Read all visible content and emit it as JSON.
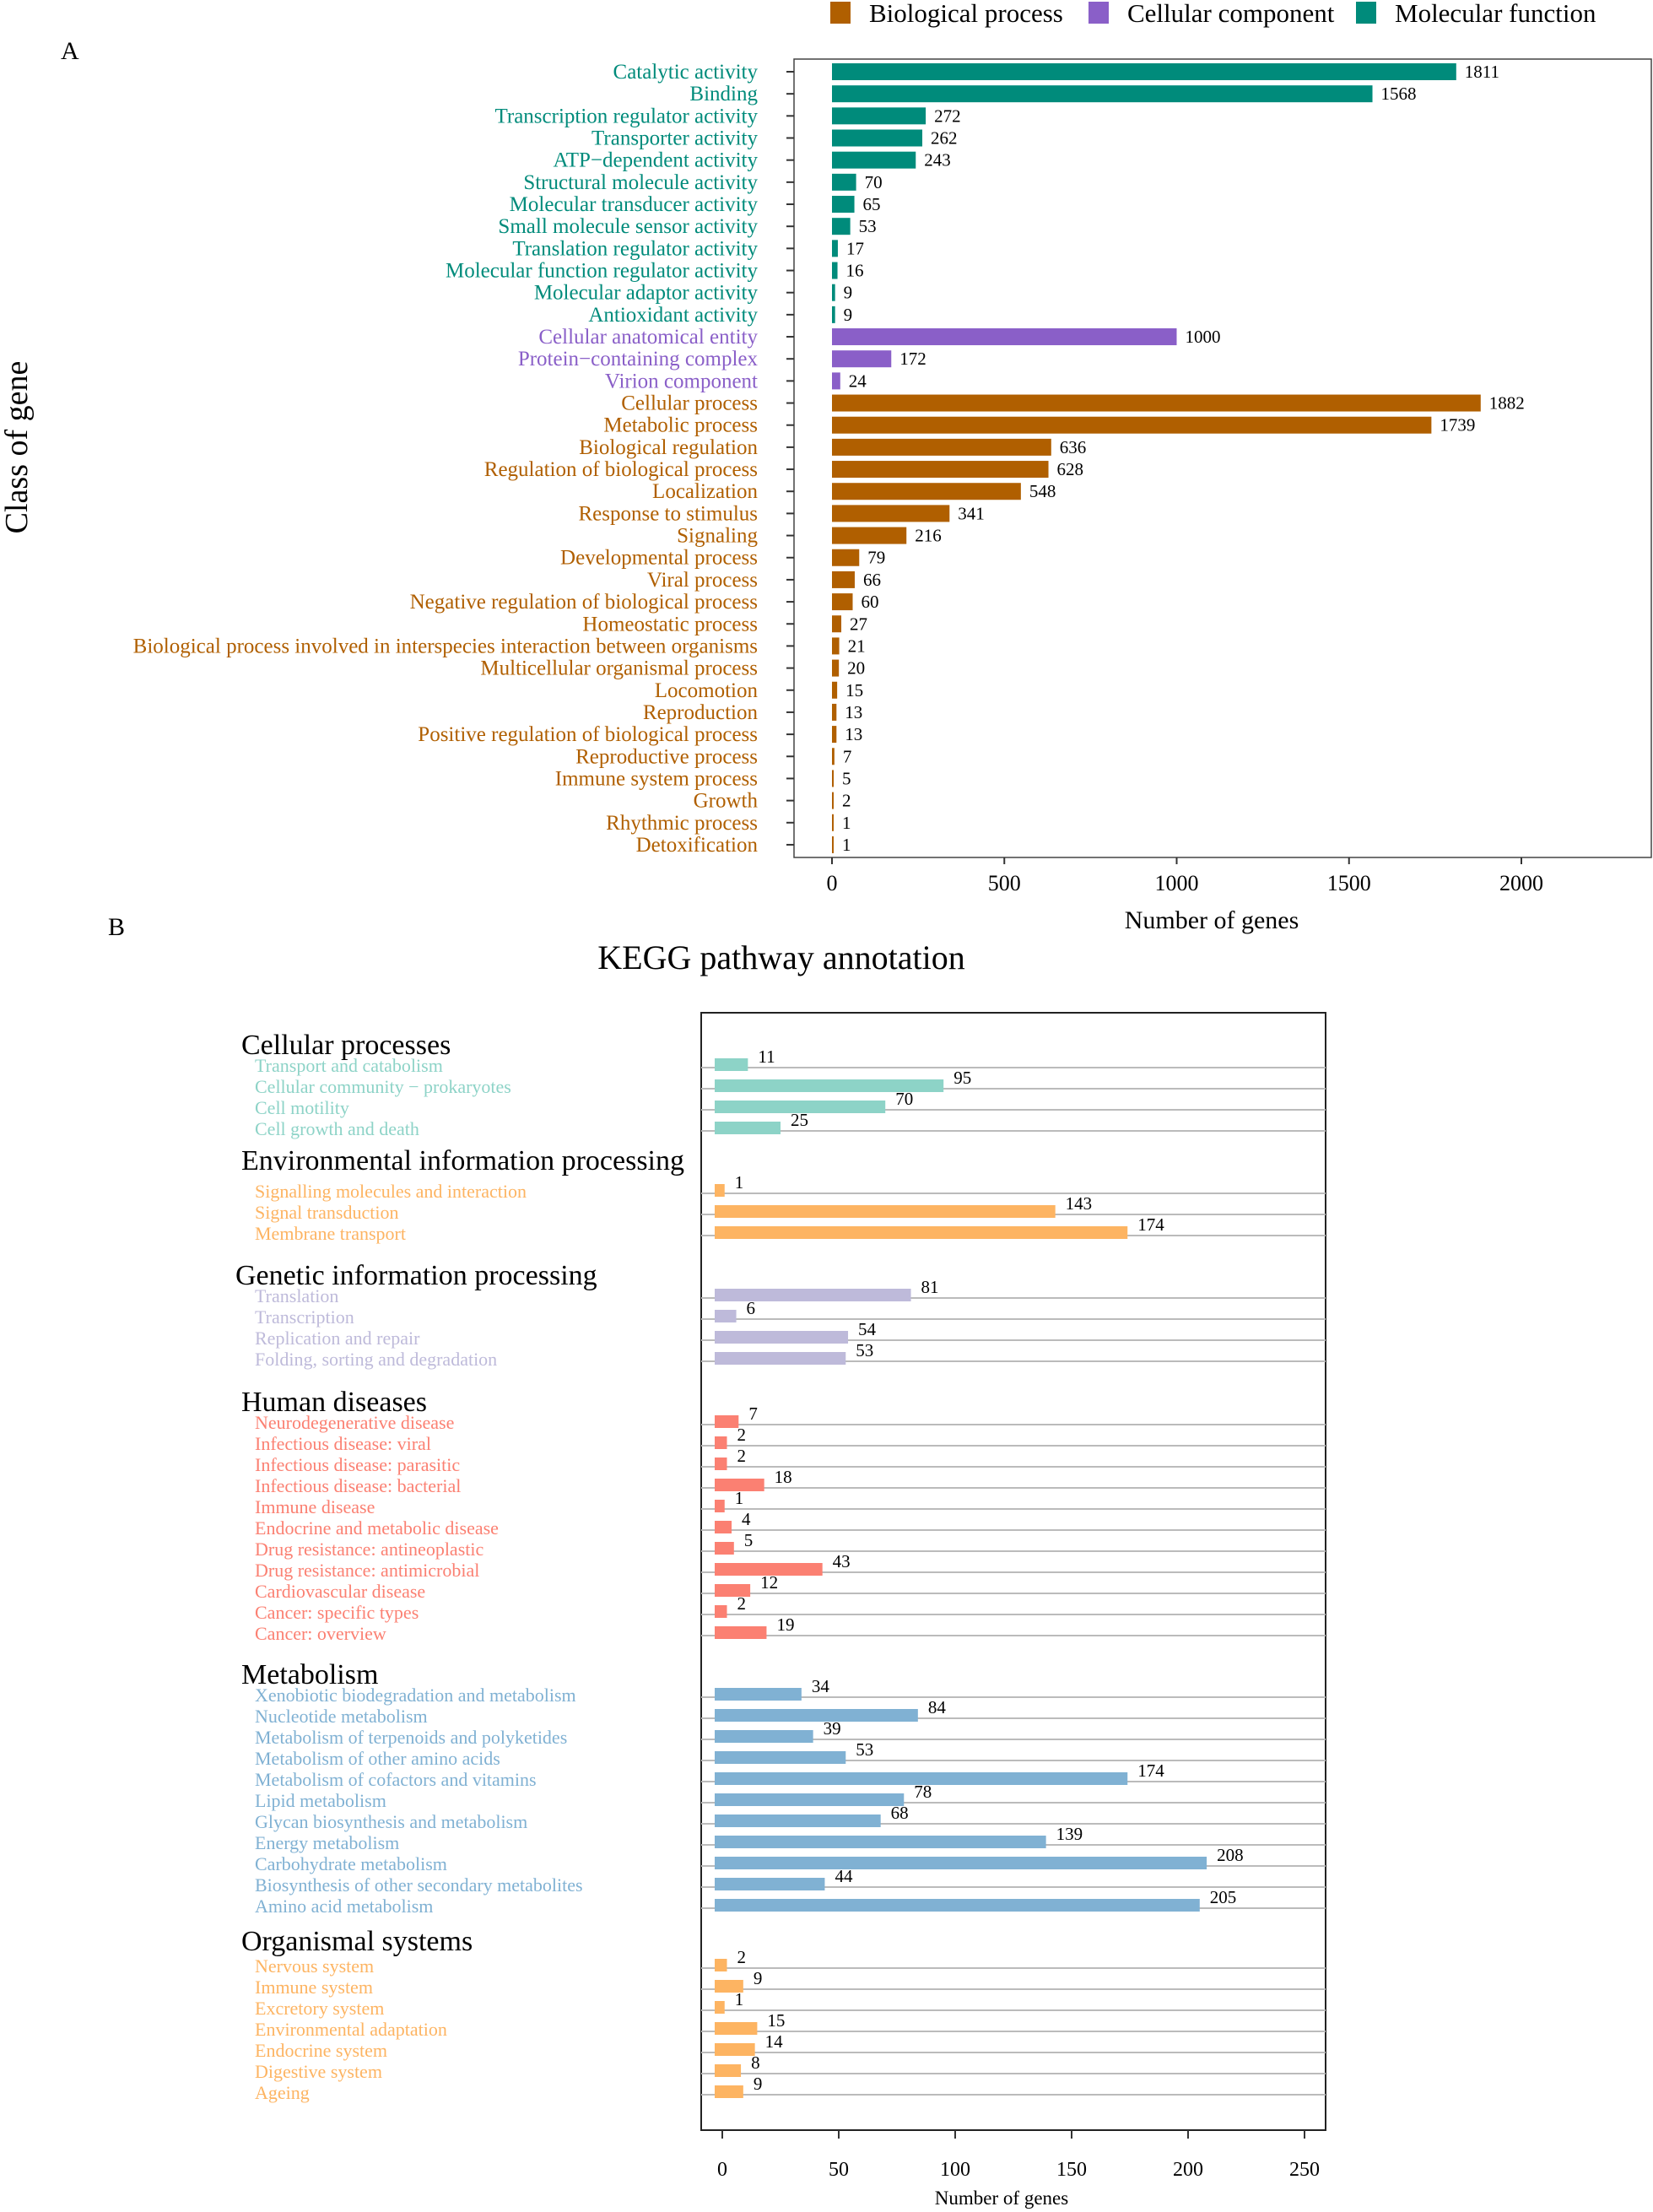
{
  "chart_data": [
    {
      "type": "bar",
      "orientation": "horizontal",
      "panel_label": "A",
      "ylabel": "Class of gene",
      "xlabel": "Number of genes",
      "xlim": [
        0,
        2245
      ],
      "xticks": [
        0,
        500,
        1000,
        1500,
        2000
      ],
      "legend": {
        "position": "top",
        "entries": [
          {
            "name": "Biological process",
            "color": "#b05f00"
          },
          {
            "name": "Cellular component",
            "color": "#8a5fc8"
          },
          {
            "name": "Molecular function",
            "color": "#008b7b"
          }
        ]
      },
      "categories": [
        {
          "label": "Catalytic activity",
          "value": 1811,
          "group": "Molecular function"
        },
        {
          "label": "Binding",
          "value": 1568,
          "group": "Molecular function"
        },
        {
          "label": "Transcription regulator activity",
          "value": 272,
          "group": "Molecular function"
        },
        {
          "label": "Transporter activity",
          "value": 262,
          "group": "Molecular function"
        },
        {
          "label": "ATP−dependent activity",
          "value": 243,
          "group": "Molecular function"
        },
        {
          "label": "Structural molecule activity",
          "value": 70,
          "group": "Molecular function"
        },
        {
          "label": "Molecular transducer activity",
          "value": 65,
          "group": "Molecular function"
        },
        {
          "label": "Small molecule sensor activity",
          "value": 53,
          "group": "Molecular function"
        },
        {
          "label": "Translation regulator activity",
          "value": 17,
          "group": "Molecular function"
        },
        {
          "label": "Molecular function regulator activity",
          "value": 16,
          "group": "Molecular function"
        },
        {
          "label": "Molecular adaptor activity",
          "value": 9,
          "group": "Molecular function"
        },
        {
          "label": "Antioxidant activity",
          "value": 9,
          "group": "Molecular function"
        },
        {
          "label": "Cellular anatomical entity",
          "value": 1000,
          "group": "Cellular component"
        },
        {
          "label": "Protein−containing complex",
          "value": 172,
          "group": "Cellular component"
        },
        {
          "label": "Virion component",
          "value": 24,
          "group": "Cellular component"
        },
        {
          "label": "Cellular process",
          "value": 1882,
          "group": "Biological process"
        },
        {
          "label": "Metabolic process",
          "value": 1739,
          "group": "Biological process"
        },
        {
          "label": "Biological regulation",
          "value": 636,
          "group": "Biological process"
        },
        {
          "label": "Regulation of biological process",
          "value": 628,
          "group": "Biological process"
        },
        {
          "label": "Localization",
          "value": 548,
          "group": "Biological process"
        },
        {
          "label": "Response to stimulus",
          "value": 341,
          "group": "Biological process"
        },
        {
          "label": "Signaling",
          "value": 216,
          "group": "Biological process"
        },
        {
          "label": "Developmental process",
          "value": 79,
          "group": "Biological process"
        },
        {
          "label": "Viral process",
          "value": 66,
          "group": "Biological process"
        },
        {
          "label": "Negative regulation of biological process",
          "value": 60,
          "group": "Biological process"
        },
        {
          "label": "Homeostatic process",
          "value": 27,
          "group": "Biological process"
        },
        {
          "label": "Biological process involved in interspecies interaction between organisms",
          "value": 21,
          "group": "Biological process"
        },
        {
          "label": "Multicellular organismal process",
          "value": 20,
          "group": "Biological process"
        },
        {
          "label": "Locomotion",
          "value": 15,
          "group": "Biological process"
        },
        {
          "label": "Reproduction",
          "value": 13,
          "group": "Biological process"
        },
        {
          "label": "Positive regulation of biological process",
          "value": 13,
          "group": "Biological process"
        },
        {
          "label": "Reproductive process",
          "value": 7,
          "group": "Biological process"
        },
        {
          "label": "Immune system process",
          "value": 5,
          "group": "Biological process"
        },
        {
          "label": "Growth",
          "value": 2,
          "group": "Biological process"
        },
        {
          "label": "Rhythmic process",
          "value": 1,
          "group": "Biological process"
        },
        {
          "label": "Detoxification",
          "value": 1,
          "group": "Biological process"
        }
      ]
    },
    {
      "type": "bar",
      "orientation": "horizontal",
      "panel_label": "B",
      "title": "KEGG pathway annotation",
      "xlabel": "Number of genes",
      "xlim": [
        0,
        260
      ],
      "xticks": [
        0,
        50,
        100,
        150,
        200,
        250
      ],
      "grid": "horizontal lines per row",
      "groups": [
        {
          "name": "Cellular processes",
          "color": "#8dd3c7",
          "items": [
            {
              "label": "Transport and catabolism",
              "value": 11
            },
            {
              "label": "Cellular community − prokaryotes",
              "value": 95
            },
            {
              "label": "Cell motility",
              "value": 70
            },
            {
              "label": "Cell growth and death",
              "value": 25
            }
          ]
        },
        {
          "name": "Environmental information processing",
          "color": "#fdb462",
          "items": [
            {
              "label": "Signalling molecules and interaction",
              "value": 1
            },
            {
              "label": "Signal transduction",
              "value": 143
            },
            {
              "label": "Membrane transport",
              "value": 174
            }
          ]
        },
        {
          "name": "Genetic information processing",
          "color": "#bebada",
          "items": [
            {
              "label": "Translation",
              "value": 81
            },
            {
              "label": "Transcription",
              "value": 6
            },
            {
              "label": "Replication and repair",
              "value": 54
            },
            {
              "label": "Folding, sorting and degradation",
              "value": 53
            }
          ]
        },
        {
          "name": "Human diseases",
          "color": "#fb8072",
          "items": [
            {
              "label": "Neurodegenerative disease",
              "value": 7
            },
            {
              "label": "Infectious disease: viral",
              "value": 2
            },
            {
              "label": "Infectious disease: parasitic",
              "value": 2
            },
            {
              "label": "Infectious disease: bacterial",
              "value": 18
            },
            {
              "label": "Immune disease",
              "value": 1
            },
            {
              "label": "Endocrine and metabolic disease",
              "value": 4
            },
            {
              "label": "Drug resistance: antineoplastic",
              "value": 5
            },
            {
              "label": "Drug resistance: antimicrobial",
              "value": 43
            },
            {
              "label": "Cardiovascular disease",
              "value": 12
            },
            {
              "label": "Cancer: specific types",
              "value": 2
            },
            {
              "label": "Cancer: overview",
              "value": 19
            }
          ]
        },
        {
          "name": "Metabolism",
          "color": "#80b1d3",
          "items": [
            {
              "label": "Xenobiotic biodegradation and metabolism",
              "value": 34
            },
            {
              "label": "Nucleotide metabolism",
              "value": 84
            },
            {
              "label": "Metabolism of terpenoids and polyketides",
              "value": 39
            },
            {
              "label": "Metabolism of other amino acids",
              "value": 53
            },
            {
              "label": "Metabolism of cofactors and vitamins",
              "value": 174
            },
            {
              "label": "Lipid metabolism",
              "value": 78
            },
            {
              "label": "Glycan biosynthesis and metabolism",
              "value": 68
            },
            {
              "label": "Energy metabolism",
              "value": 139
            },
            {
              "label": "Carbohydrate metabolism",
              "value": 208
            },
            {
              "label": "Biosynthesis of other secondary metabolites",
              "value": 44
            },
            {
              "label": "Amino acid metabolism",
              "value": 205
            }
          ]
        },
        {
          "name": "Organismal systems",
          "color": "#fdb462",
          "items": [
            {
              "label": "Nervous system",
              "value": 2
            },
            {
              "label": "Immune system",
              "value": 9
            },
            {
              "label": "Excretory system",
              "value": 1
            },
            {
              "label": "Environmental adaptation",
              "value": 15
            },
            {
              "label": "Endocrine system",
              "value": 14
            },
            {
              "label": "Digestive system",
              "value": 8
            },
            {
              "label": "Ageing",
              "value": 9
            }
          ]
        }
      ]
    }
  ]
}
